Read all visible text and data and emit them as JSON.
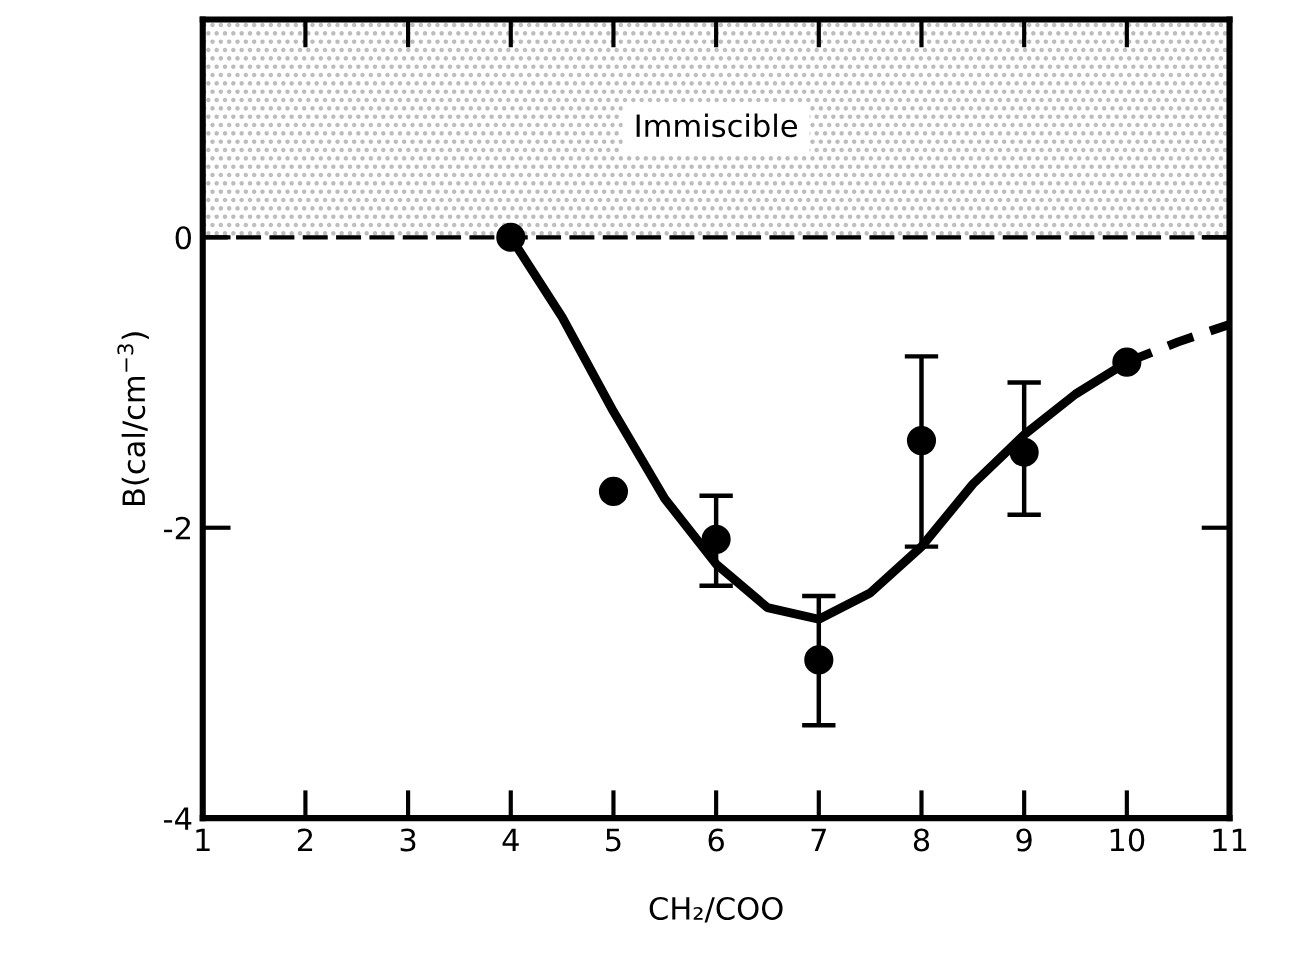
{
  "chart_data": {
    "type": "scatter",
    "xlabel": "CH₂/COO",
    "ylabel": "B(cal/cm$^{−3}$)",
    "x": [
      4,
      5,
      6,
      7,
      8,
      9,
      10
    ],
    "series": [
      {
        "color": "#000000",
        "marker": "circle",
        "values": [
          0,
          -1.75,
          -2.08,
          -2.91,
          -1.4,
          -1.48,
          -0.86
        ],
        "errors": [
          null,
          null,
          [
            -2.4,
            -1.78
          ],
          [
            -3.36,
            -2.47
          ],
          [
            -2.13,
            -0.82
          ],
          [
            -1.91,
            -1.0
          ],
          null
        ]
      },
      {
        "type": "line",
        "color": "#000000",
        "marker": "none",
        "line_style": "solid",
        "x": [
          4,
          4.5,
          5,
          5.5,
          6,
          6.5,
          7,
          7.5,
          8,
          8.5,
          9,
          9.5,
          10
        ],
        "values": [
          0,
          -0.55,
          -1.2,
          -1.8,
          -2.25,
          -2.55,
          -2.63,
          -2.45,
          -2.13,
          -1.7,
          -1.36,
          -1.08,
          -0.86
        ]
      },
      {
        "type": "line",
        "color": "#000000",
        "marker": "none",
        "line_style": "dashed",
        "x": [
          10,
          10.5,
          11
        ],
        "values": [
          -0.86,
          -0.72,
          -0.6
        ]
      }
    ],
    "ref_lines": [
      {
        "axis": "y",
        "value": 0,
        "line_style": "dashed"
      }
    ],
    "bands": [
      {
        "axis": "y",
        "from": 0,
        "to": 1.5,
        "label": "Immiscible",
        "color": "#bbbbbb"
      }
    ],
    "xlim": [
      1,
      11
    ],
    "ylim": [
      -4,
      1.5
    ],
    "xticks": [
      1,
      2,
      3,
      4,
      5,
      6,
      7,
      8,
      9,
      10,
      11
    ],
    "yticks": [
      0,
      -2,
      -4
    ],
    "grid": false,
    "legend": false
  }
}
